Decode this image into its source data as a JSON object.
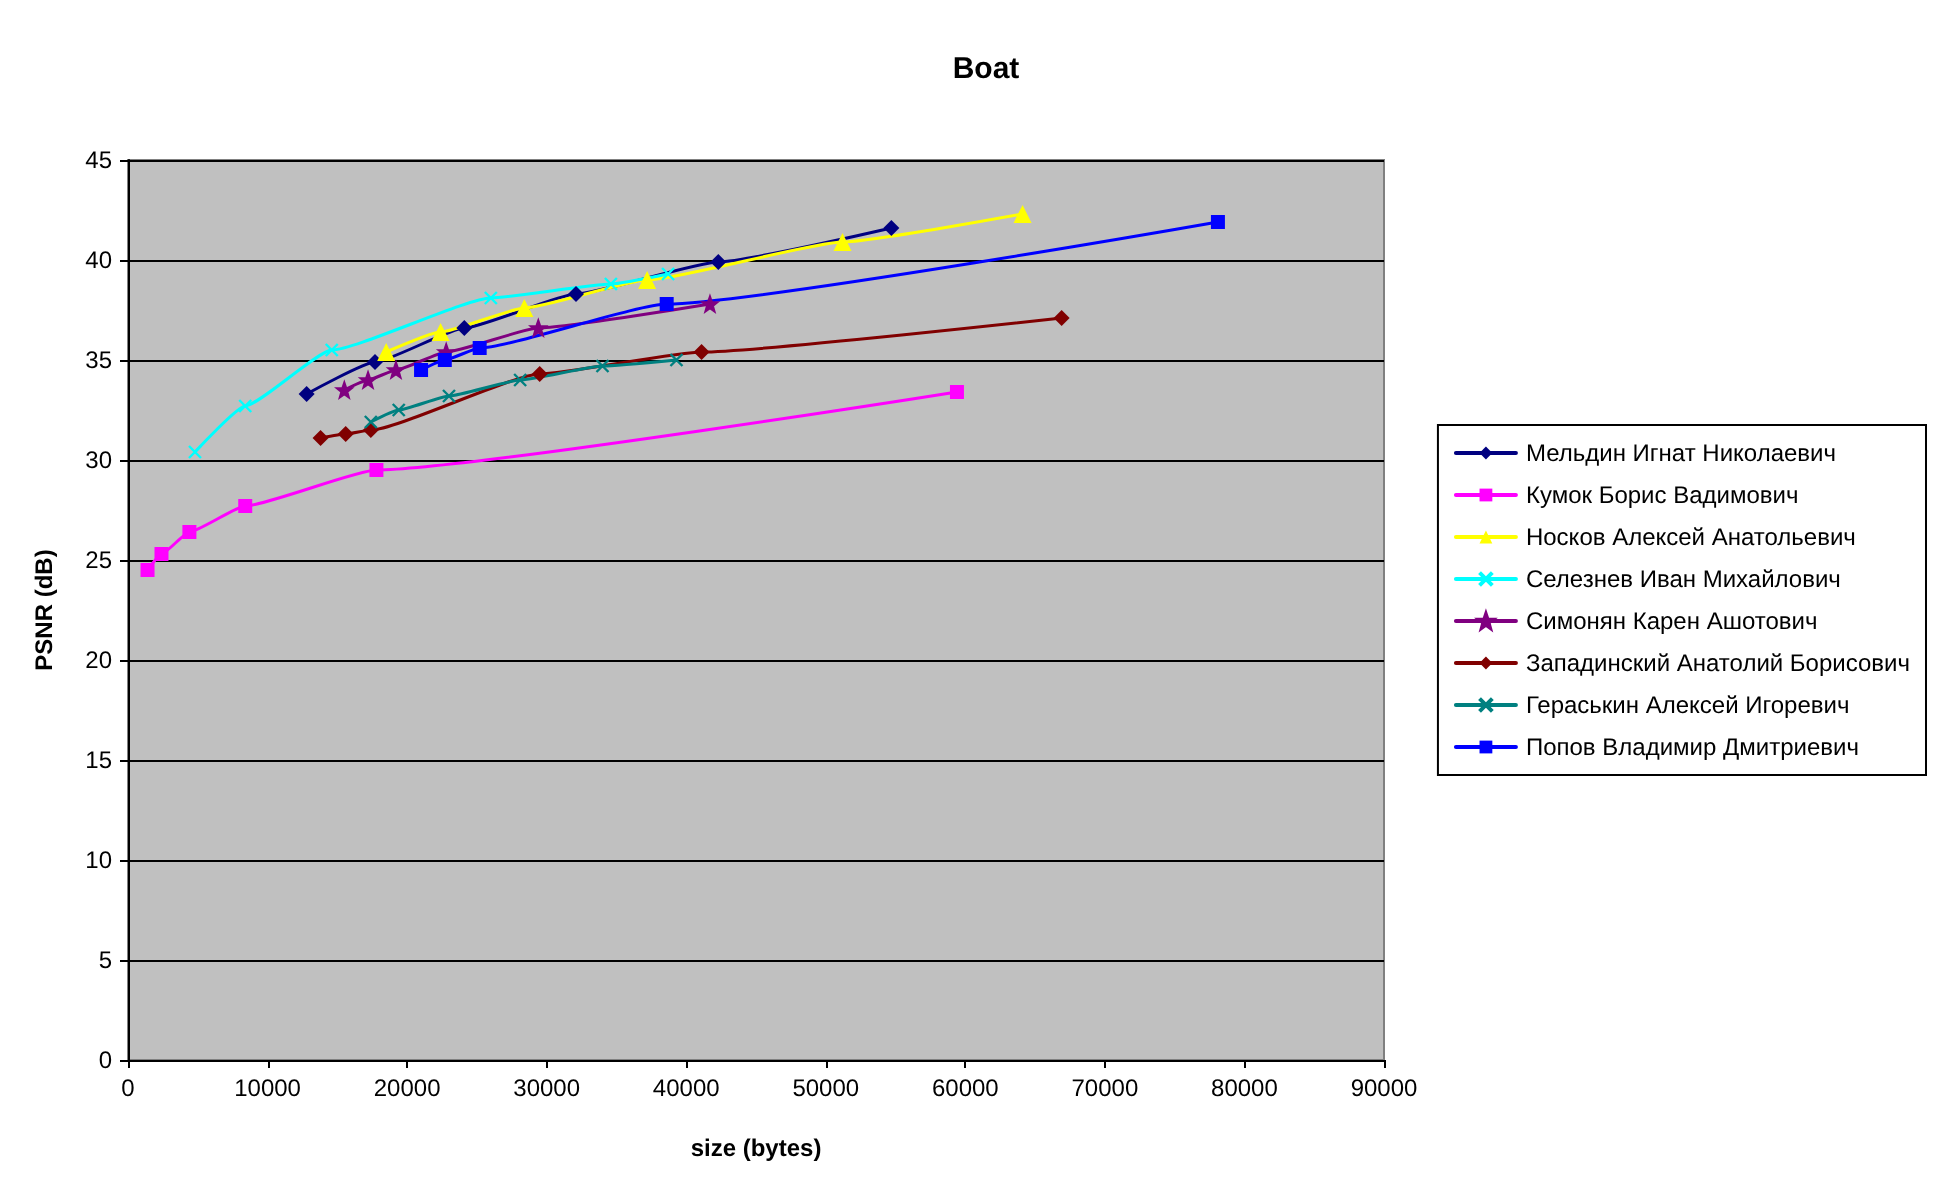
{
  "chart_data": {
    "type": "line",
    "title": "Boat",
    "xlabel": "size (bytes)",
    "ylabel": "PSNR (dB)",
    "xlim": [
      0,
      90000
    ],
    "xticks": [
      0,
      10000,
      20000,
      30000,
      40000,
      50000,
      60000,
      70000,
      80000,
      90000
    ],
    "ylim": [
      0,
      45
    ],
    "yticks": [
      0,
      5,
      10,
      15,
      20,
      25,
      30,
      35,
      40,
      45
    ],
    "grid": "y",
    "legend": "right",
    "series": [
      {
        "name": "Мельдин Игнат Николаевич",
        "color": "#000080",
        "marker": "diamond",
        "x": [
          12800,
          17700,
          24100,
          32100,
          42300,
          54700
        ],
        "values": [
          33.3,
          34.9,
          36.6,
          38.3,
          39.9,
          41.6
        ]
      },
      {
        "name": "Кумок Борис Вадимович",
        "color": "#ff00ff",
        "marker": "square",
        "x": [
          1400,
          2400,
          4400,
          8400,
          17800,
          59400
        ],
        "values": [
          24.5,
          25.3,
          26.4,
          27.7,
          29.5,
          33.4
        ]
      },
      {
        "name": "Носков Алексей Анатольевич",
        "color": "#ffff00",
        "marker": "triangle",
        "x": [
          18500,
          22400,
          28400,
          37200,
          51200,
          64100
        ],
        "values": [
          35.4,
          36.4,
          37.6,
          39.0,
          40.9,
          42.3
        ]
      },
      {
        "name": "Селезнев Иван Михайлович",
        "color": "#00ffff",
        "marker": "cross",
        "x": [
          4800,
          8400,
          14600,
          26000,
          34600,
          38700
        ],
        "values": [
          30.4,
          32.7,
          35.5,
          38.1,
          38.8,
          39.3
        ]
      },
      {
        "name": "Симонян Карен Ашотович",
        "color": "#800080",
        "marker": "star",
        "x": [
          15500,
          17200,
          19200,
          22800,
          29400,
          41700
        ],
        "values": [
          33.5,
          34.0,
          34.5,
          35.4,
          36.6,
          37.8
        ]
      },
      {
        "name": "Западинский Анатолий Борисович",
        "color": "#800000",
        "marker": "diamond",
        "x": [
          13800,
          15600,
          17400,
          29500,
          41100,
          66900
        ],
        "values": [
          31.1,
          31.3,
          31.5,
          34.3,
          35.4,
          37.1
        ]
      },
      {
        "name": "Гераськин Алексей Игоревич",
        "color": "#008080",
        "marker": "cross",
        "x": [
          17400,
          19400,
          23000,
          28100,
          34000,
          39300
        ],
        "values": [
          31.9,
          32.5,
          33.2,
          34.0,
          34.7,
          35.0
        ]
      },
      {
        "name": "Попов Владимир Дмитриевич",
        "color": "#0000ff",
        "marker": "square",
        "x": [
          21000,
          22700,
          25200,
          38600,
          78100
        ],
        "values": [
          34.5,
          35.0,
          35.6,
          37.8,
          41.9
        ]
      }
    ]
  }
}
